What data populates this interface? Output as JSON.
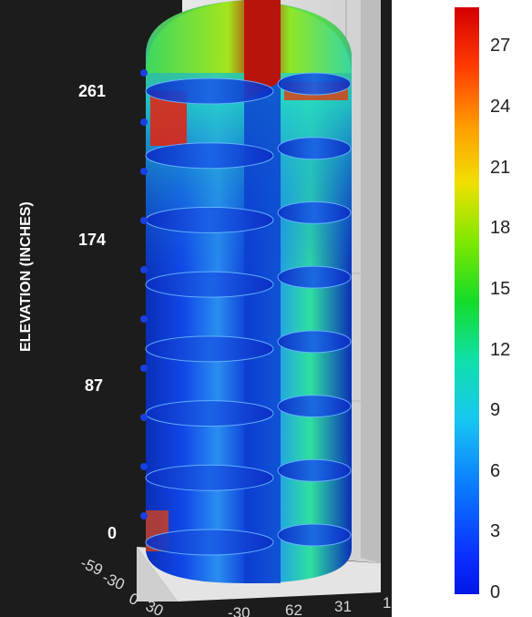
{
  "chart_data": {
    "type": "heatmap",
    "title": "",
    "z_axis": {
      "label": "ELEVATION (INCHES)",
      "ticks": [
        "0",
        "87",
        "174",
        "261"
      ],
      "range": [
        0,
        300
      ]
    },
    "floor_axis_1": {
      "ticks": [
        "-59",
        "-30",
        "0",
        "30"
      ]
    },
    "floor_axis_2": {
      "ticks": [
        "-30",
        "62",
        "31",
        "1"
      ]
    },
    "colorbar": {
      "ticks": [
        "0",
        "3",
        "6",
        "9",
        "12",
        "15",
        "18",
        "21",
        "24",
        "27"
      ],
      "range": [
        0,
        29
      ],
      "colormap": "jet"
    },
    "trays": {
      "count": 8
    },
    "colors": {
      "background": "#1c1c1c",
      "low": "#0a2fd8",
      "mid": "#22e0d0",
      "high": "#e61c0c"
    }
  }
}
